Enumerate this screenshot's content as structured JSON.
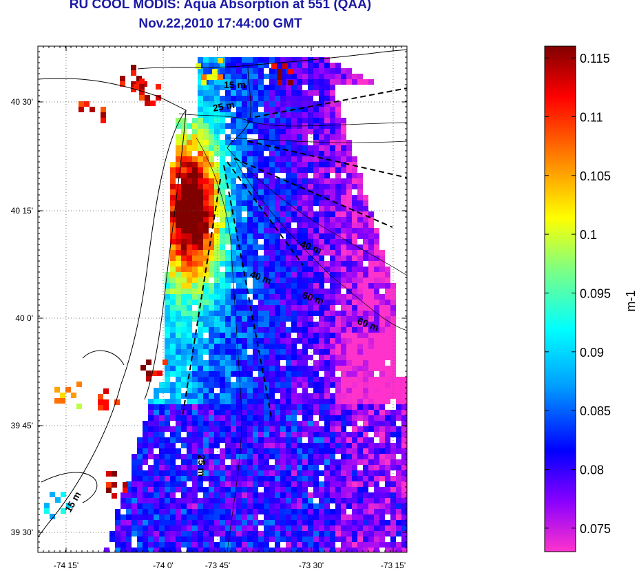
{
  "title": "RU COOL MODIS: Aqua Absorption at 551 (QAA)",
  "subtitle": "Nov.22,2010 17:44:00 GMT",
  "map": {
    "lon_range": [
      -74.33,
      -73.22
    ],
    "lat_range": [
      39.43,
      40.67
    ],
    "lon_ticks": [
      "-74 15'",
      "-74 0'",
      "-73 45'",
      "-73 30'",
      "-73 15'"
    ],
    "lat_ticks": [
      "40 30'",
      "40 15'",
      "40 0'",
      "39 45'",
      "39 30'"
    ],
    "grid": "dotted",
    "depth_labels": [
      "15 m",
      "25 m",
      "40 m",
      "40 m",
      "60 m",
      "60 m",
      "25 m",
      "15 m"
    ]
  },
  "colorbar": {
    "unit_label": "m-1",
    "min": 0.073,
    "max": 0.116,
    "tick_labels": [
      "0.115",
      "0.11",
      "0.105",
      "0.1",
      "0.095",
      "0.09",
      "0.085",
      "0.08",
      "0.075"
    ],
    "tick_values": [
      0.115,
      0.11,
      0.105,
      0.1,
      0.095,
      0.09,
      0.085,
      0.08,
      0.075
    ],
    "colormap": [
      "#ff33cc",
      "#8800ff",
      "#0000ff",
      "#00a0ff",
      "#00ffff",
      "#80ff80",
      "#ffff00",
      "#ff8000",
      "#ff0000",
      "#800000"
    ]
  },
  "chart_data": {
    "type": "heatmap",
    "title": "RU COOL MODIS: Aqua Absorption at 551 (QAA)",
    "subtitle": "Nov.22,2010 17:44:00 GMT",
    "xlabel": "",
    "ylabel": "",
    "clabel": "m-1",
    "clim": [
      0.073,
      0.116
    ],
    "xlim": [
      -74.33,
      -73.22
    ],
    "ylim": [
      39.43,
      40.67
    ],
    "xticks": [
      "-74 15'",
      "-74 0'",
      "-73 45'",
      "-73 30'",
      "-73 15'"
    ],
    "yticks": [
      "40 30'",
      "40 15'",
      "40 0'",
      "39 45'",
      "39 30'"
    ],
    "grid": true,
    "legend": "colorbar-right"
  }
}
